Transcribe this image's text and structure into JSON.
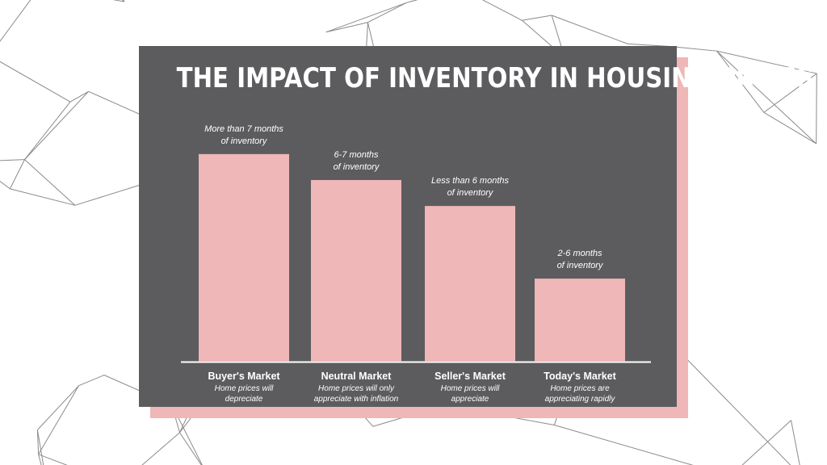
{
  "chart_data": {
    "type": "bar",
    "title": "THE IMPACT OF INVENTORY IN HOUSING PRICES",
    "categories": [
      "Buyer's Market",
      "Neutral Market",
      "Seller's Market",
      "Today's Market"
    ],
    "values": [
      4,
      3.5,
      3,
      1.6
    ],
    "ylim": [
      0,
      4.2
    ],
    "grid": false,
    "legend": "none",
    "bar_labels": [
      "More than 7 months\nof inventory",
      "6-7 months\nof inventory",
      "Less than 6 months\nof inventory",
      "2-6 months\nof inventory"
    ],
    "descriptions": [
      "Home prices will\ndepreciate",
      "Home prices will only\nappreciate with inflation",
      "Home prices will\nappreciate",
      "Home prices are\nappreciating rapidly"
    ]
  },
  "colors": {
    "background": "#ffffff",
    "card": "#5c5c5e",
    "accent": "#efb7b7",
    "text": "#ffffff",
    "lines": "#8a8a8a"
  }
}
